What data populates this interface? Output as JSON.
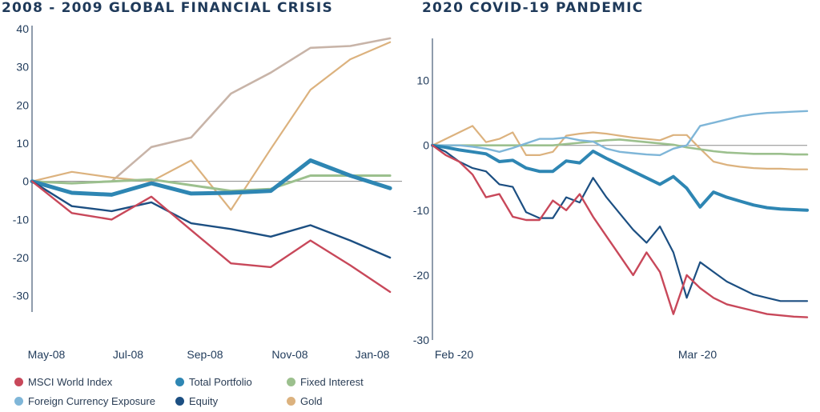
{
  "colors": {
    "msci": "#c8485a",
    "total": "#2e86b3",
    "fixed": "#9cc08e",
    "fx": "#7fb6d8",
    "equity": "#1c4f82",
    "gold": "#dcb27e",
    "gfc_unlabeled": "#c8b4a8",
    "axis": "#1f3a5a",
    "zero": "#8a8a8a"
  },
  "legend": [
    {
      "label": "MSCI World Index",
      "color": "#c8485a"
    },
    {
      "label": "Total Portfolio",
      "color": "#2e86b3"
    },
    {
      "label": "Fixed Interest",
      "color": "#9cc08e"
    },
    {
      "label": "Foreign Currency Exposure",
      "color": "#7fb6d8"
    },
    {
      "label": "Equity",
      "color": "#1c4f82"
    },
    {
      "label": "Gold",
      "color": "#dcb27e"
    }
  ],
  "chart_data": [
    {
      "type": "line",
      "title": "2008 - 2009 GLOBAL FINANCIAL CRISIS",
      "x_ticks": [
        "May-08",
        "Jul-08",
        "Sep-08",
        "Nov-08",
        "Jan-08"
      ],
      "y_ticks": [
        40,
        30,
        20,
        10,
        0,
        -10,
        -20,
        -30
      ],
      "ylim": [
        -33,
        40
      ],
      "xlim": [
        0,
        9.3
      ],
      "grid": false,
      "legend": "bottom",
      "x": [
        0,
        1,
        2,
        3,
        4,
        5,
        6,
        7,
        8,
        9
      ],
      "series": [
        {
          "name": "",
          "key": "gfc_unlabeled",
          "width": 2.6,
          "values": [
            0,
            -0.5,
            0,
            9,
            11.5,
            23,
            28.5,
            35,
            35.5,
            37.5
          ]
        },
        {
          "name": "Gold",
          "key": "gold",
          "width": 2.2,
          "values": [
            0,
            2.5,
            1,
            0,
            5.5,
            -7.5,
            8.5,
            24,
            32,
            36.5
          ]
        },
        {
          "name": "Fixed Interest",
          "key": "fixed",
          "width": 3,
          "values": [
            0,
            -0.5,
            0,
            0.5,
            -1,
            -2.5,
            -2,
            1.5,
            1.5,
            1.5
          ]
        },
        {
          "name": "Total Portfolio",
          "key": "total",
          "width": 5,
          "values": [
            0,
            -3,
            -3.5,
            -0.5,
            -3.2,
            -3,
            -2.5,
            5.5,
            1.5,
            -1.8
          ]
        },
        {
          "name": "Equity",
          "key": "equity",
          "width": 2.4,
          "values": [
            0,
            -6.5,
            -7.8,
            -5.5,
            -11,
            -12.5,
            -14.5,
            -11.5,
            -15.5,
            -20
          ]
        },
        {
          "name": "MSCI World Index",
          "key": "msci",
          "width": 2.4,
          "values": [
            0,
            -8.3,
            -10,
            -4,
            -12.8,
            -21.5,
            -22.5,
            -15.5,
            -22,
            -29
          ]
        }
      ]
    },
    {
      "type": "line",
      "title": "2020 COVID-19 PANDEMIC",
      "x_ticks": [
        "Feb -20",
        "Mar -20"
      ],
      "y_ticks": [
        10,
        0,
        -10,
        -20,
        -30
      ],
      "ylim": [
        -30,
        16
      ],
      "xlim": [
        0,
        28
      ],
      "grid": false,
      "legend": "bottom",
      "x": [
        0,
        1,
        2,
        3,
        4,
        5,
        6,
        7,
        8,
        9,
        10,
        11,
        12,
        13,
        14,
        15,
        16,
        17,
        18,
        19,
        20,
        21,
        22,
        23,
        24,
        25,
        26,
        27,
        28
      ],
      "series": [
        {
          "name": "Gold",
          "key": "gold",
          "width": 2.2,
          "values": [
            0,
            1,
            2,
            3,
            0.5,
            1,
            2,
            -1.5,
            -1.5,
            -1,
            1.5,
            1.8,
            2,
            1.8,
            1.5,
            1.2,
            1,
            0.8,
            1.6,
            1.6,
            -0.5,
            -2.5,
            -3,
            -3.3,
            -3.5,
            -3.6,
            -3.6,
            -3.7,
            -3.7
          ]
        },
        {
          "name": "Fixed Interest",
          "key": "fixed",
          "width": 2.6,
          "values": [
            0,
            0,
            0,
            0,
            0,
            0,
            0,
            0,
            0,
            0,
            0.2,
            0.4,
            0.6,
            0.8,
            0.9,
            0.7,
            0.5,
            0.3,
            0.1,
            -0.3,
            -0.6,
            -0.9,
            -1.1,
            -1.2,
            -1.3,
            -1.3,
            -1.3,
            -1.4,
            -1.4
          ]
        },
        {
          "name": "Foreign Currency Exposure",
          "key": "fx",
          "width": 2.4,
          "values": [
            0,
            0,
            0,
            -0.2,
            -0.5,
            -1,
            -0.4,
            0.3,
            1,
            1,
            1.2,
            0.8,
            0.6,
            -0.5,
            -1,
            -1.2,
            -1.4,
            -1.5,
            -0.5,
            0,
            3,
            3.5,
            4,
            4.5,
            4.8,
            5,
            5.1,
            5.2,
            5.3
          ]
        },
        {
          "name": "Total Portfolio",
          "key": "total",
          "width": 4,
          "values": [
            0,
            -0.3,
            -0.7,
            -1,
            -1.3,
            -2.5,
            -2.3,
            -3.5,
            -4,
            -4,
            -2.4,
            -2.7,
            -0.9,
            -2,
            -3,
            -4,
            -5,
            -6,
            -4.8,
            -6.6,
            -9.5,
            -7.2,
            -8,
            -8.6,
            -9.2,
            -9.6,
            -9.8,
            -9.9,
            -10
          ]
        },
        {
          "name": "Equity",
          "key": "equity",
          "width": 2.2,
          "values": [
            0,
            -1,
            -2.5,
            -3.5,
            -4,
            -6,
            -6.4,
            -10.3,
            -11.2,
            -11.2,
            -8,
            -8.8,
            -5,
            -8,
            -10.5,
            -13,
            -15,
            -12.5,
            -16.5,
            -23.5,
            -18,
            -19.5,
            -21,
            -22,
            -23,
            -23.5,
            -24,
            -24,
            -24
          ]
        },
        {
          "name": "MSCI World Index",
          "key": "msci",
          "width": 2.4,
          "values": [
            0,
            -1.5,
            -2.5,
            -4.5,
            -8,
            -7.5,
            -11,
            -11.5,
            -11.5,
            -8.5,
            -10,
            -7.5,
            -11,
            -14,
            -17,
            -20,
            -16.5,
            -19.5,
            -26,
            -20,
            -22,
            -23.5,
            -24.5,
            -25,
            -25.5,
            -26,
            -26.2,
            -26.4,
            -26.5
          ]
        }
      ]
    }
  ]
}
